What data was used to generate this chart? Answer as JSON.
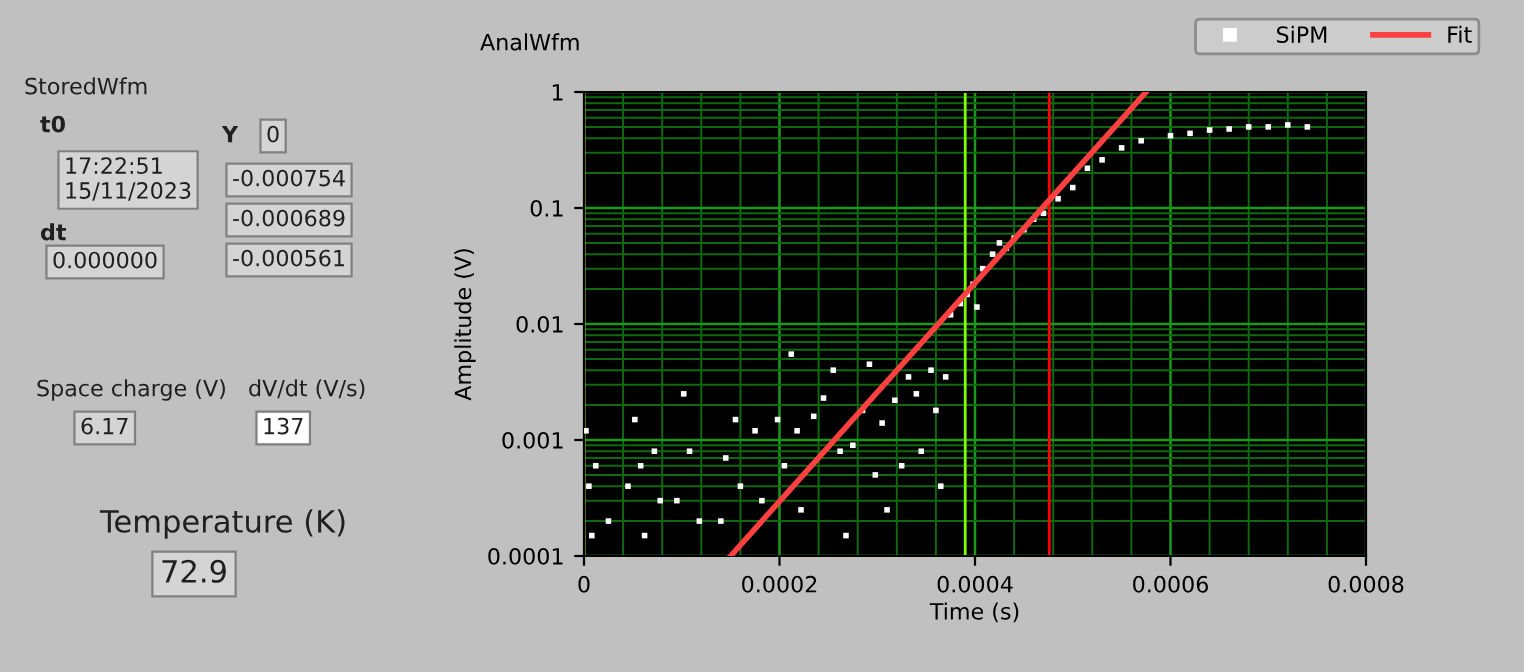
{
  "chart_data": [
    {
      "type": "other",
      "annotations": [
        "StoredWfm",
        "t0",
        "17:22:51\n15/11/2023",
        "dt",
        "0.000000",
        "Y",
        "0",
        "-0.000754",
        "-0.000689",
        "-0.000561",
        "Space charge (V)",
        "6.17",
        "dV/dt (V/s)",
        "137",
        "Temperature (K)",
        "72.9"
      ]
    },
    {
      "type": "scatter",
      "title": "AnalWfm",
      "xlabel": "Time (s)",
      "ylabel": "Amplitude (V)",
      "log": "y",
      "xlim": [
        0,
        0.0008
      ],
      "xticks": [
        0,
        {
          "value": 4e-05,
          "label": null
        },
        {
          "value": 8e-05,
          "label": null
        },
        {
          "value": 0.00012,
          "label": null
        },
        {
          "value": 0.00016,
          "label": null
        },
        0.0002,
        {
          "value": 0.00024,
          "label": null
        },
        {
          "value": 0.00028,
          "label": null
        },
        {
          "value": 0.00032,
          "label": null
        },
        {
          "value": 0.00036,
          "label": null
        },
        0.0004,
        {
          "value": 0.00044,
          "label": null
        },
        {
          "value": 0.00048,
          "label": null
        },
        {
          "value": 0.00052,
          "label": null
        },
        {
          "value": 0.00056,
          "label": null
        },
        0.0006,
        {
          "value": 0.00064,
          "label": null
        },
        {
          "value": 0.00068,
          "label": null
        },
        {
          "value": 0.00072,
          "label": null
        },
        {
          "value": 0.00076,
          "label": null
        },
        0.0008
      ],
      "ylim": [
        0.0001,
        1
      ],
      "yticks": [
        0.0001,
        {
          "value": 0.0002,
          "label": null
        },
        {
          "value": 0.0003,
          "label": null
        },
        {
          "value": 0.0004,
          "label": null
        },
        {
          "value": 0.0005,
          "label": null
        },
        {
          "value": 0.0006,
          "label": null
        },
        {
          "value": 0.0007,
          "label": null
        },
        {
          "value": 0.0008,
          "label": null
        },
        {
          "value": 0.0009,
          "label": null
        },
        0.001,
        {
          "value": 0.002,
          "label": null
        },
        {
          "value": 0.003,
          "label": null
        },
        {
          "value": 0.004,
          "label": null
        },
        {
          "value": 0.005,
          "label": null
        },
        {
          "value": 0.006,
          "label": null
        },
        {
          "value": 0.007,
          "label": null
        },
        {
          "value": 0.008,
          "label": null
        },
        {
          "value": 0.009,
          "label": null
        },
        0.01,
        {
          "value": 0.02,
          "label": null
        },
        {
          "value": 0.03,
          "label": null
        },
        {
          "value": 0.04,
          "label": null
        },
        {
          "value": 0.05,
          "label": null
        },
        {
          "value": 0.06,
          "label": null
        },
        {
          "value": 0.07,
          "label": null
        },
        {
          "value": 0.08,
          "label": null
        },
        {
          "value": 0.09,
          "label": null
        },
        0.1,
        {
          "value": 0.2,
          "label": null
        },
        {
          "value": 0.3,
          "label": null
        },
        {
          "value": 0.4,
          "label": null
        },
        {
          "value": 0.5,
          "label": null
        },
        {
          "value": 0.6,
          "label": null
        },
        {
          "value": 0.7,
          "label": null
        },
        {
          "value": 0.8,
          "label": null
        },
        {
          "value": 0.9,
          "label": null
        },
        1
      ],
      "grid": true,
      "legend": "top right",
      "ref_lines": [
        {
          "axis": "x",
          "value": 0,
          "color": "#ffff00"
        },
        {
          "axis": "x",
          "value": 0.00039,
          "color": "#80ff00"
        },
        {
          "axis": "x",
          "value": 0.000476,
          "color": "#ff0000"
        }
      ],
      "series": [
        {
          "name": "SiPM",
          "type": "scatter",
          "color": "#ffffff",
          "marker": "square",
          "x": [
            2e-06,
            5e-06,
            8e-06,
            1.2e-05,
            2.5e-05,
            4.5e-05,
            5.2e-05,
            5.8e-05,
            6.2e-05,
            7.2e-05,
            7.8e-05,
            9.5e-05,
            0.000102,
            0.000108,
            0.000118,
            0.00014,
            0.000145,
            0.000155,
            0.00016,
            0.000175,
            0.000182,
            0.000198,
            0.000205,
            0.000212,
            0.000218,
            0.000222,
            0.000235,
            0.000245,
            0.000255,
            0.000262,
            0.000268,
            0.000275,
            0.000285,
            0.000292,
            0.000298,
            0.000305,
            0.00031,
            0.000318,
            0.000325,
            0.000332,
            0.00034,
            0.000345,
            0.000355,
            0.00036,
            0.000365,
            0.00037,
            0.000375,
            0.000385,
            0.000392,
            0.000398,
            0.000402,
            0.000408,
            0.000418,
            0.000425,
            0.000432,
            0.00044,
            0.00045,
            0.00046,
            0.00047,
            0.000485,
            0.0005,
            0.000515,
            0.00053,
            0.00055,
            0.00057,
            0.0006,
            0.00062,
            0.00064,
            0.00066,
            0.00068,
            0.0007,
            0.00072,
            0.00074
          ],
          "values": [
            0.0012,
            0.0004,
            0.00015,
            0.0006,
            0.0002,
            0.0004,
            0.0015,
            0.0006,
            0.00015,
            0.0008,
            0.0003,
            0.0003,
            0.0025,
            0.0008,
            0.0002,
            0.0002,
            0.0007,
            0.0015,
            0.0004,
            0.0012,
            0.0003,
            0.0015,
            0.0006,
            0.0055,
            0.0012,
            0.00025,
            0.0016,
            0.0023,
            0.004,
            0.0008,
            0.00015,
            0.0009,
            0.0018,
            0.0045,
            0.0005,
            0.0014,
            0.00025,
            0.0022,
            0.0006,
            0.0035,
            0.0025,
            0.0008,
            0.004,
            0.0018,
            0.0004,
            0.0035,
            0.012,
            0.015,
            0.018,
            0.022,
            0.014,
            0.03,
            0.04,
            0.05,
            0.045,
            0.055,
            0.065,
            0.08,
            0.09,
            0.12,
            0.15,
            0.22,
            0.26,
            0.33,
            0.38,
            0.42,
            0.44,
            0.47,
            0.48,
            0.5,
            0.5,
            0.52,
            0.5
          ]
        },
        {
          "name": "Fit",
          "type": "line",
          "color": "#ff4040",
          "line_style": "solid",
          "x": [
            0.00015,
            0.000575
          ],
          "values": [
            0.0001,
            1
          ]
        }
      ]
    }
  ]
}
